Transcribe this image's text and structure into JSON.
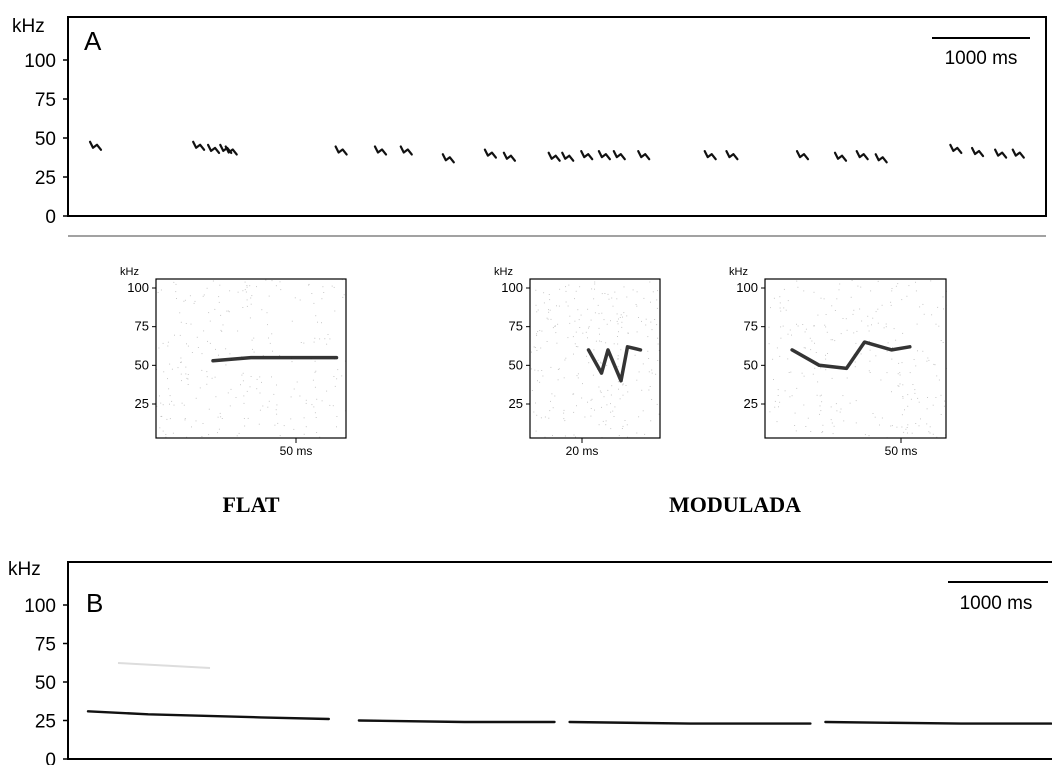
{
  "chart_data": [
    {
      "type": "scatter",
      "panel_label": "A",
      "ylabel": "kHz",
      "yticks": [
        "100",
        "75",
        "50",
        "25",
        "0"
      ],
      "ylim": [
        0,
        120
      ],
      "scale_bar": "1000 ms",
      "calls_ms": [
        0,
        760,
        870,
        960,
        1000,
        1810,
        2100,
        2290,
        2600,
        2910,
        3050,
        3380,
        3480,
        3620,
        3750,
        3860,
        4040,
        4530,
        4690,
        5210,
        5490,
        5650,
        5790,
        6340,
        6500,
        6670,
        6800
      ],
      "calls_khz": [
        45,
        45,
        43,
        43,
        42,
        42,
        42,
        42,
        37,
        40,
        38,
        38,
        38,
        39,
        39,
        39,
        39,
        39,
        39,
        39,
        38,
        39,
        37,
        43,
        41,
        40,
        40
      ]
    },
    {
      "type": "line",
      "panel_label": "B",
      "ylabel": "kHz",
      "yticks": [
        "100",
        "75",
        "50",
        "25",
        "0"
      ],
      "ylim": [
        0,
        120
      ],
      "scale_bar": "1000 ms",
      "segments": [
        {
          "x": [
            0,
            400,
            800,
            1150,
            1600
          ],
          "y": [
            31,
            29,
            28,
            27,
            26
          ]
        },
        {
          "x": [
            1800,
            2500,
            3100
          ],
          "y": [
            25,
            24,
            24
          ]
        },
        {
          "x": [
            3200,
            4000,
            4800
          ],
          "y": [
            24,
            23,
            23
          ]
        },
        {
          "x": [
            4900,
            5800,
            6400
          ],
          "y": [
            24,
            23,
            23
          ]
        }
      ]
    },
    {
      "type": "spectrogram",
      "ylabel": "kHz",
      "yticks": [
        "100",
        "75",
        "50",
        "25"
      ],
      "xlabel": "50 ms",
      "category": "FLAT",
      "trace": {
        "x": [
          0.3,
          0.5,
          0.8,
          0.95
        ],
        "y": [
          53,
          55,
          55,
          55
        ]
      }
    },
    {
      "type": "spectrogram",
      "ylabel": "kHz",
      "yticks": [
        "100",
        "75",
        "50",
        "25"
      ],
      "xlabel": "20 ms",
      "category": "MODULADA",
      "trace": {
        "x": [
          0.45,
          0.55,
          0.6,
          0.7,
          0.75,
          0.85
        ],
        "y": [
          60,
          45,
          60,
          40,
          62,
          60
        ]
      }
    },
    {
      "type": "spectrogram",
      "ylabel": "kHz",
      "yticks": [
        "100",
        "75",
        "50",
        "25"
      ],
      "xlabel": "50 ms",
      "category": "",
      "trace": {
        "x": [
          0.15,
          0.3,
          0.45,
          0.55,
          0.7,
          0.8
        ],
        "y": [
          60,
          50,
          48,
          65,
          60,
          62
        ]
      }
    }
  ],
  "labels": {
    "flat": "FLAT",
    "modulada": "MODULADA"
  },
  "colors": {
    "ink": "#111111",
    "axis": "#000000",
    "noise": "#9a9a9a"
  }
}
